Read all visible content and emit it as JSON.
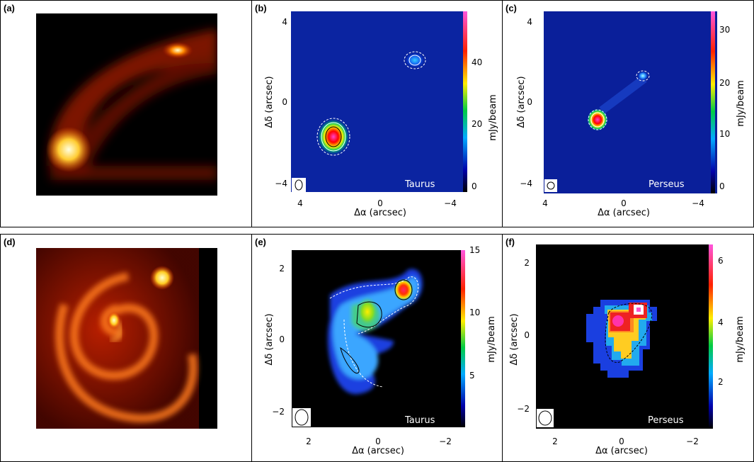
{
  "figure": {
    "panels": [
      {
        "id": "a",
        "label": "(a)"
      },
      {
        "id": "b",
        "label": "(b)",
        "region": "Taurus",
        "xlabel": "Δα (arcsec)",
        "ylabel": "Δδ (arcsec)",
        "cbar_label": "mJy/beam"
      },
      {
        "id": "c",
        "label": "(c)",
        "region": "Perseus",
        "xlabel": "Δα (arcsec)",
        "ylabel": "Δδ (arcsec)",
        "cbar_label": "mJy/beam"
      },
      {
        "id": "d",
        "label": "(d)"
      },
      {
        "id": "e",
        "label": "(e)",
        "region": "Taurus",
        "xlabel": "Δα (arcsec)",
        "ylabel": "Δδ (arcsec)",
        "cbar_label": "mJy/beam"
      },
      {
        "id": "f",
        "label": "(f)",
        "region": "Perseus",
        "xlabel": "Δα (arcsec)",
        "ylabel": "Δδ (arcsec)",
        "cbar_label": "mJy/beam"
      }
    ]
  },
  "chart_data": [
    {
      "panel": "b",
      "type": "heatmap",
      "xticks": [
        "4",
        "0",
        "−4"
      ],
      "yticks": [
        "4",
        "0",
        "−4"
      ],
      "cbar_ticks": [
        "0",
        "20",
        "40"
      ],
      "xlim": [
        4.3,
        -4.3
      ],
      "ylim": [
        -4.3,
        4.3
      ],
      "cbar_range": [
        0,
        55
      ],
      "sources": [
        {
          "x": 2.3,
          "y": -1.6,
          "peak": 55
        },
        {
          "x": -1.6,
          "y": 2.1,
          "peak": 12
        }
      ]
    },
    {
      "panel": "c",
      "type": "heatmap",
      "xticks": [
        "4",
        "0",
        "−4"
      ],
      "yticks": [
        "4",
        "0",
        "−4"
      ],
      "cbar_ticks": [
        "0",
        "10",
        "20",
        "30"
      ],
      "xlim": [
        4.3,
        -4.3
      ],
      "ylim": [
        -4.3,
        4.3
      ],
      "cbar_range": [
        0,
        34
      ],
      "sources": [
        {
          "x": 1.3,
          "y": -1.0,
          "peak": 34
        },
        {
          "x": -1.2,
          "y": 1.2,
          "peak": 10
        }
      ]
    },
    {
      "panel": "e",
      "type": "heatmap",
      "xticks": [
        "2",
        "0",
        "−2"
      ],
      "yticks": [
        "2",
        "0",
        "−2"
      ],
      "cbar_ticks": [
        "5",
        "10",
        "15"
      ],
      "xlim": [
        2.6,
        -2.6
      ],
      "ylim": [
        -2.5,
        2.5
      ],
      "cbar_range": [
        1,
        15
      ],
      "sources": [
        {
          "x": -0.8,
          "y": 1.3,
          "peak": 15
        },
        {
          "x": 0.4,
          "y": 0.8,
          "peak": 10
        }
      ]
    },
    {
      "panel": "f",
      "type": "heatmap",
      "xticks": [
        "2",
        "0",
        "−2"
      ],
      "yticks": [
        "2",
        "0",
        "−2"
      ],
      "cbar_ticks": [
        "2",
        "4",
        "6"
      ],
      "xlim": [
        2.6,
        -2.6
      ],
      "ylim": [
        -2.5,
        2.5
      ],
      "cbar_range": [
        0.5,
        6.5
      ],
      "sources": [
        {
          "x": 0.2,
          "y": 0.5,
          "peak": 6
        },
        {
          "x": -0.5,
          "y": 0.8,
          "peak": 6.3
        }
      ]
    }
  ]
}
